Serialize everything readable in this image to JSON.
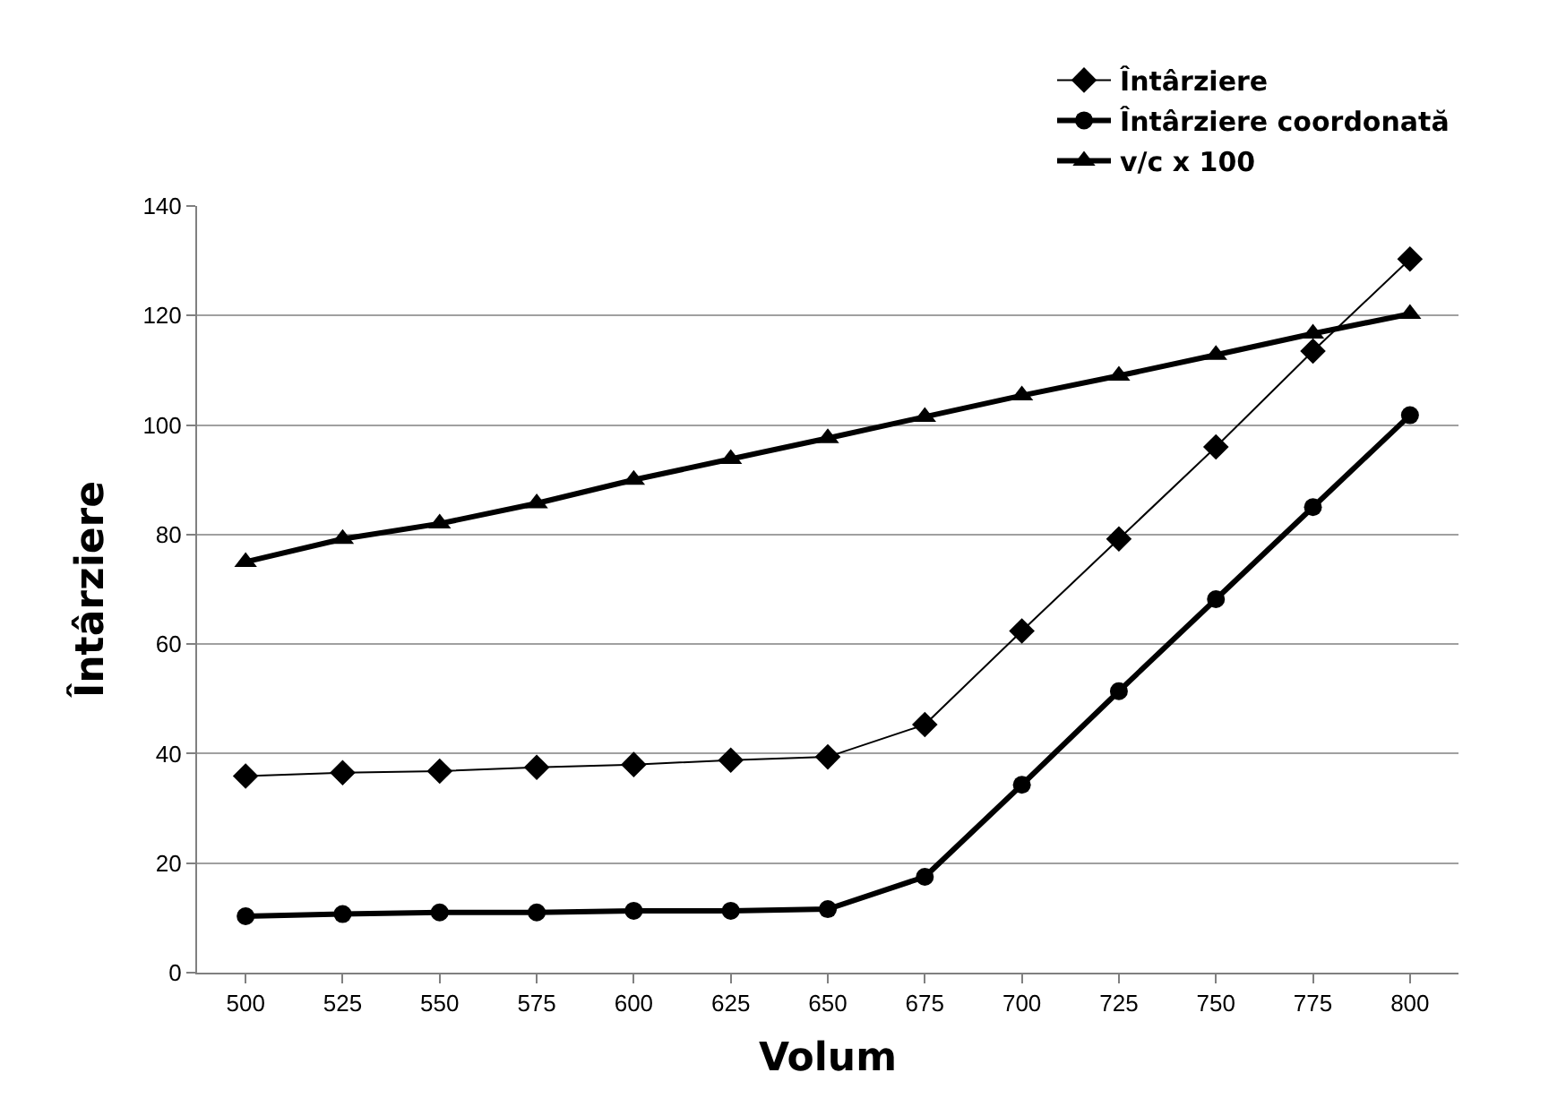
{
  "chart_data": {
    "type": "line",
    "xlabel": "Volum",
    "ylabel": "Întârziere",
    "categories": [
      "500",
      "525",
      "550",
      "575",
      "600",
      "625",
      "650",
      "675",
      "700",
      "725",
      "750",
      "775",
      "800"
    ],
    "series": [
      {
        "name": "Întârziere",
        "color": "#000000",
        "marker": "diamond",
        "values": [
          35.9,
          36.5,
          36.8,
          37.5,
          38,
          38.8,
          39.4,
          45.3,
          62.4,
          79.2,
          96,
          113.5,
          130.3
        ]
      },
      {
        "name": "Întârziere coordonată",
        "color": "#000000",
        "marker": "circle",
        "values": [
          10.3,
          10.7,
          11,
          11,
          11.3,
          11.3,
          11.6,
          17.5,
          34.3,
          51.4,
          68.2,
          85,
          101.8
        ]
      },
      {
        "name": "v/c x 100",
        "color": "#000000",
        "marker": "triangle",
        "values": [
          75,
          79.2,
          82,
          85.7,
          90,
          93.8,
          97.6,
          101.5,
          105.4,
          109,
          112.8,
          116.7,
          120.3
        ]
      }
    ],
    "ylim": [
      0,
      140
    ],
    "yticks": [
      0,
      20,
      40,
      60,
      80,
      100,
      120,
      140
    ],
    "grid": "y",
    "legend": "top right",
    "line_style": "solid"
  }
}
